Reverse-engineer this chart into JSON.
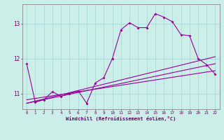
{
  "xlabel": "Windchill (Refroidissement éolien,°C)",
  "background_color": "#cceee8",
  "grid_color": "#aadddd",
  "line_color": "#990099",
  "x_ticks": [
    0,
    1,
    2,
    3,
    4,
    5,
    6,
    7,
    8,
    9,
    10,
    11,
    12,
    13,
    14,
    15,
    16,
    17,
    18,
    19,
    20,
    21,
    22
  ],
  "y_ticks": [
    11,
    12,
    13
  ],
  "xlim": [
    -0.5,
    22.5
  ],
  "ylim": [
    10.55,
    13.55
  ],
  "series1_x": [
    0,
    1,
    2,
    3,
    4,
    5,
    6,
    7,
    8,
    9,
    10,
    11,
    12,
    13,
    14,
    15,
    16,
    17,
    18,
    19,
    20,
    21,
    22
  ],
  "series1_y": [
    11.85,
    10.75,
    10.82,
    11.05,
    10.92,
    11.0,
    11.08,
    10.72,
    11.3,
    11.45,
    12.0,
    12.82,
    13.02,
    12.88,
    12.88,
    13.28,
    13.18,
    13.05,
    12.68,
    12.65,
    12.0,
    11.82,
    11.55
  ],
  "series2_x": [
    0,
    22
  ],
  "series2_y": [
    10.72,
    11.85
  ],
  "series3_x": [
    0,
    22
  ],
  "series3_y": [
    10.72,
    12.05
  ],
  "series4_x": [
    0,
    22
  ],
  "series4_y": [
    10.82,
    11.65
  ]
}
